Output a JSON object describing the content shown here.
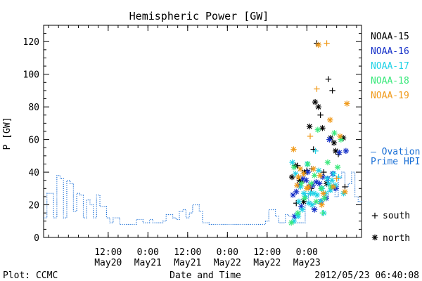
{
  "chart_data": {
    "type": "scatter",
    "title": "Hemispheric Power [GW]",
    "ylabel": "P [GW]",
    "xlabel": "Date and Time",
    "ylim": [
      0,
      130
    ],
    "yticks": [
      0,
      20,
      40,
      60,
      80,
      100,
      120
    ],
    "xlim_hours": [
      0,
      96
    ],
    "xtick_labels": [
      {
        "time": "12:00",
        "date": "May20"
      },
      {
        "time": "0:00",
        "date": "May21"
      },
      {
        "time": "12:00",
        "date": "May21"
      },
      {
        "time": "0:00",
        "date": "May22"
      },
      {
        "time": "12:00",
        "date": "May22"
      },
      {
        "time": "0:00",
        "date": "May23"
      }
    ],
    "xtick_hours": [
      19.5,
      31.5,
      43.5,
      55.5,
      67.5,
      79.5
    ],
    "footer_left": "Plot: CCMC",
    "footer_right": "2012/05/23 06:40:08",
    "legend": [
      {
        "name": "NOAA-15",
        "color": "#000000"
      },
      {
        "name": "NOAA-16",
        "color": "#1530c8"
      },
      {
        "name": "NOAA-17",
        "color": "#1fd2e6"
      },
      {
        "name": "NOAA-18",
        "color": "#38e87a"
      },
      {
        "name": "NOAA-19",
        "color": "#f09a1a"
      }
    ],
    "ovation_label_1": "— Ovation",
    "ovation_label_2": "Prime HPI",
    "ovation_color": "#1a6fd6",
    "marker_legend": {
      "south": "south",
      "north": "north"
    },
    "ovation_hpi": [
      [
        0,
        12
      ],
      [
        1,
        27
      ],
      [
        2,
        27
      ],
      [
        3,
        12
      ],
      [
        4,
        38
      ],
      [
        5,
        36
      ],
      [
        6,
        12
      ],
      [
        7,
        35
      ],
      [
        8,
        33
      ],
      [
        9,
        16
      ],
      [
        10,
        27
      ],
      [
        11,
        26
      ],
      [
        12,
        12
      ],
      [
        13,
        23
      ],
      [
        14,
        20
      ],
      [
        15,
        12
      ],
      [
        16,
        26
      ],
      [
        17,
        19
      ],
      [
        18,
        19
      ],
      [
        19,
        12
      ],
      [
        20,
        9
      ],
      [
        21,
        12
      ],
      [
        22,
        12
      ],
      [
        23,
        8
      ],
      [
        24,
        8
      ],
      [
        25,
        8
      ],
      [
        26,
        8
      ],
      [
        27,
        8
      ],
      [
        28,
        11
      ],
      [
        29,
        11
      ],
      [
        30,
        9
      ],
      [
        31,
        9
      ],
      [
        32,
        11
      ],
      [
        33,
        9
      ],
      [
        34,
        9
      ],
      [
        35,
        9
      ],
      [
        36,
        10
      ],
      [
        37,
        14
      ],
      [
        38,
        14
      ],
      [
        39,
        12
      ],
      [
        40,
        11
      ],
      [
        41,
        16
      ],
      [
        42,
        17
      ],
      [
        43,
        12
      ],
      [
        44,
        15
      ],
      [
        45,
        20
      ],
      [
        46,
        20
      ],
      [
        47,
        16
      ],
      [
        48,
        9
      ],
      [
        49,
        9
      ],
      [
        50,
        8
      ],
      [
        51,
        8
      ],
      [
        52,
        8
      ],
      [
        53,
        8
      ],
      [
        54,
        8
      ],
      [
        55,
        8
      ],
      [
        56,
        8
      ],
      [
        57,
        8
      ],
      [
        58,
        8
      ],
      [
        59,
        8
      ],
      [
        60,
        8
      ],
      [
        61,
        8
      ],
      [
        62,
        8
      ],
      [
        63,
        8
      ],
      [
        64,
        8
      ],
      [
        65,
        8
      ],
      [
        66,
        8
      ],
      [
        67,
        10
      ],
      [
        68,
        17
      ],
      [
        69,
        17
      ],
      [
        70,
        13
      ],
      [
        71,
        9
      ],
      [
        72,
        9
      ],
      [
        73,
        14
      ],
      [
        74,
        13
      ],
      [
        75,
        13
      ],
      [
        76,
        9
      ],
      [
        77,
        9
      ],
      [
        78,
        9
      ],
      [
        79,
        27
      ],
      [
        80,
        22
      ],
      [
        81,
        17
      ],
      [
        82,
        21
      ],
      [
        83,
        22
      ],
      [
        84,
        23
      ],
      [
        85,
        24
      ],
      [
        86,
        28
      ],
      [
        87,
        31
      ],
      [
        88,
        25
      ],
      [
        89,
        36
      ],
      [
        90,
        40
      ],
      [
        91,
        31
      ],
      [
        92,
        33
      ],
      [
        93,
        40
      ],
      [
        94,
        25
      ],
      [
        95,
        22
      ],
      [
        96,
        21
      ]
    ],
    "series": [
      {
        "name": "NOAA-15",
        "color": "#000000",
        "points": [
          [
            75.0,
            37,
            "n"
          ],
          [
            76.0,
            44,
            "n"
          ],
          [
            76.7,
            44,
            "s"
          ],
          [
            77.3,
            35,
            "n"
          ],
          [
            78.0,
            34,
            "s"
          ],
          [
            78.8,
            40,
            "n"
          ],
          [
            79.5,
            41,
            "s"
          ],
          [
            80.3,
            68,
            "n"
          ],
          [
            81.0,
            42,
            "s"
          ],
          [
            81.5,
            54,
            "s"
          ],
          [
            82.0,
            83,
            "n"
          ],
          [
            82.5,
            119,
            "s"
          ],
          [
            83.0,
            80,
            "n"
          ],
          [
            83.6,
            75,
            "s"
          ],
          [
            84.2,
            67,
            "n"
          ],
          [
            84.6,
            40,
            "s"
          ],
          [
            85.5,
            33,
            "n"
          ],
          [
            86.0,
            97,
            "s"
          ],
          [
            86.7,
            61,
            "n"
          ],
          [
            87.2,
            90,
            "s"
          ],
          [
            87.7,
            58,
            "n"
          ],
          [
            88.2,
            53,
            "n"
          ],
          [
            89.0,
            51,
            "s"
          ],
          [
            90.5,
            61,
            "n"
          ],
          [
            91.0,
            31,
            "s"
          ],
          [
            76.3,
            21,
            "s"
          ],
          [
            78.5,
            22,
            "n"
          ],
          [
            80.8,
            30,
            "s"
          ]
        ]
      },
      {
        "name": "NOAA-16",
        "color": "#1530c8",
        "points": [
          [
            75.3,
            26,
            "n"
          ],
          [
            76.3,
            28,
            "n"
          ],
          [
            77.3,
            32,
            "n"
          ],
          [
            78.3,
            36,
            "n"
          ],
          [
            79.3,
            35,
            "n"
          ],
          [
            80.3,
            31,
            "n"
          ],
          [
            81.3,
            32,
            "n"
          ],
          [
            82.3,
            34,
            "n"
          ],
          [
            83.3,
            33,
            "n"
          ],
          [
            84.3,
            37,
            "n"
          ],
          [
            85.3,
            24,
            "n"
          ],
          [
            86.3,
            60,
            "n"
          ],
          [
            87.3,
            39,
            "n"
          ],
          [
            88.3,
            30,
            "n"
          ],
          [
            89.3,
            52,
            "n"
          ],
          [
            91.3,
            53,
            "n"
          ],
          [
            75.8,
            13,
            "n"
          ],
          [
            77.8,
            19,
            "n"
          ],
          [
            79.8,
            40,
            "n"
          ],
          [
            81.8,
            17,
            "n"
          ],
          [
            83.8,
            22,
            "n"
          ],
          [
            85.8,
            36,
            "n"
          ],
          [
            87.8,
            31,
            "n"
          ]
        ]
      },
      {
        "name": "NOAA-17",
        "color": "#1fd2e6",
        "points": [
          [
            75.1,
            46,
            "n"
          ],
          [
            76.1,
            39,
            "n"
          ],
          [
            76.6,
            14,
            "n"
          ],
          [
            77.1,
            22,
            "n"
          ],
          [
            77.6,
            31,
            "n"
          ],
          [
            78.1,
            17,
            "n"
          ],
          [
            78.6,
            27,
            "n"
          ],
          [
            79.1,
            25,
            "n"
          ],
          [
            79.6,
            45,
            "n"
          ],
          [
            80.1,
            21,
            "n"
          ],
          [
            80.6,
            27,
            "n"
          ],
          [
            81.1,
            20,
            "n"
          ],
          [
            81.6,
            27,
            "n"
          ],
          [
            82.1,
            53,
            "s"
          ],
          [
            82.6,
            26,
            "n"
          ],
          [
            83.1,
            41,
            "n"
          ],
          [
            83.6,
            22,
            "n"
          ],
          [
            84.1,
            30,
            "n"
          ],
          [
            84.6,
            15,
            "n"
          ],
          [
            85.1,
            27,
            "n"
          ],
          [
            85.6,
            36,
            "n"
          ],
          [
            86.1,
            33,
            "n"
          ],
          [
            86.6,
            29,
            "n"
          ],
          [
            87.1,
            35,
            "n"
          ],
          [
            87.6,
            39,
            "n"
          ],
          [
            88.1,
            32,
            "n"
          ],
          [
            89.1,
            37,
            "s"
          ],
          [
            90.6,
            27,
            "n"
          ],
          [
            75.6,
            10,
            "n"
          ],
          [
            76.9,
            13,
            "n"
          ]
        ]
      },
      {
        "name": "NOAA-18",
        "color": "#38e87a",
        "points": [
          [
            75.6,
            43,
            "n"
          ],
          [
            76.8,
            15,
            "n"
          ],
          [
            77.8,
            33,
            "n"
          ],
          [
            78.8,
            24,
            "n"
          ],
          [
            79.8,
            45,
            "n"
          ],
          [
            80.8,
            33,
            "n"
          ],
          [
            81.8,
            38,
            "n"
          ],
          [
            82.8,
            66,
            "n"
          ],
          [
            83.8,
            30,
            "n"
          ],
          [
            84.8,
            24,
            "n"
          ],
          [
            85.8,
            46,
            "n"
          ],
          [
            86.8,
            31,
            "n"
          ],
          [
            87.8,
            64,
            "n"
          ],
          [
            88.8,
            43,
            "n"
          ],
          [
            89.8,
            60,
            "n"
          ],
          [
            74.8,
            9,
            "n"
          ],
          [
            82.3,
            22,
            "n"
          ],
          [
            84.3,
            15,
            "s"
          ]
        ]
      },
      {
        "name": "NOAA-19",
        "color": "#f09a1a",
        "points": [
          [
            75.5,
            54,
            "n"
          ],
          [
            76.5,
            32,
            "n"
          ],
          [
            77.5,
            42,
            "n"
          ],
          [
            78.5,
            39,
            "n"
          ],
          [
            79.5,
            30,
            "n"
          ],
          [
            80.5,
            62,
            "s"
          ],
          [
            81.5,
            42,
            "n"
          ],
          [
            82.5,
            91,
            "s"
          ],
          [
            83.0,
            118,
            "n"
          ],
          [
            83.5,
            38,
            "n"
          ],
          [
            84.5,
            27,
            "n"
          ],
          [
            85.5,
            119,
            "s"
          ],
          [
            86.5,
            72,
            "n"
          ],
          [
            87.5,
            31,
            "n"
          ],
          [
            88.5,
            36,
            "s"
          ],
          [
            89.5,
            62,
            "n"
          ],
          [
            91.0,
            28,
            "n"
          ],
          [
            91.6,
            82,
            "n"
          ],
          [
            77.0,
            37,
            "n"
          ],
          [
            80.0,
            31,
            "n"
          ],
          [
            84.0,
            20,
            "n"
          ]
        ]
      }
    ]
  }
}
